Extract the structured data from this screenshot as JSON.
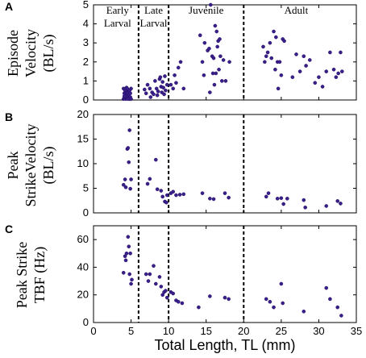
{
  "chart_data": [
    {
      "type": "scatter",
      "panel": "A",
      "ylabel_lines": [
        "Episode",
        "Velocity",
        "(BL/s)"
      ],
      "ylim": [
        0,
        5
      ],
      "yticks": [
        0,
        1,
        2,
        3,
        4,
        5
      ],
      "stage_labels": [
        {
          "lines": [
            "Early",
            "Larval"
          ],
          "x": 3.2
        },
        {
          "lines": [
            "Late",
            "Larval"
          ],
          "x": 8.0
        },
        {
          "lines": [
            "Juvenile"
          ],
          "x": 15.0
        },
        {
          "lines": [
            "Adult"
          ],
          "x": 27.0
        }
      ],
      "points": [
        [
          4.0,
          0.05
        ],
        [
          4.1,
          0.1
        ],
        [
          4.2,
          0.2
        ],
        [
          4.3,
          0.3
        ],
        [
          4.4,
          0.4
        ],
        [
          4.5,
          0.55
        ],
        [
          4.0,
          0.6
        ],
        [
          4.2,
          0.15
        ],
        [
          4.3,
          0.05
        ],
        [
          4.4,
          0.25
        ],
        [
          4.5,
          0.1
        ],
        [
          4.6,
          0.2
        ],
        [
          4.1,
          0.35
        ],
        [
          4.3,
          0.45
        ],
        [
          4.5,
          0.35
        ],
        [
          4.7,
          0.1
        ],
        [
          4.8,
          0.05
        ],
        [
          4.2,
          0.5
        ],
        [
          4.6,
          0.4
        ],
        [
          4.9,
          0.15
        ],
        [
          5.0,
          0.6
        ],
        [
          4.4,
          0.65
        ],
        [
          4.7,
          0.3
        ],
        [
          4.8,
          0.5
        ],
        [
          4.9,
          0.35
        ],
        [
          5.0,
          0.05
        ],
        [
          4.3,
          0.2
        ],
        [
          4.6,
          0.05
        ],
        [
          4.1,
          0.2
        ],
        [
          4.5,
          0.6
        ],
        [
          6.8,
          0.55
        ],
        [
          7.0,
          0.35
        ],
        [
          7.2,
          0.8
        ],
        [
          7.5,
          0.6
        ],
        [
          7.8,
          0.4
        ],
        [
          8.0,
          0.3
        ],
        [
          8.2,
          1.0
        ],
        [
          8.4,
          0.6
        ],
        [
          8.6,
          0.45
        ],
        [
          8.8,
          1.1
        ],
        [
          9.0,
          0.7
        ],
        [
          9.2,
          0.95
        ],
        [
          9.4,
          0.3
        ],
        [
          9.6,
          0.5
        ],
        [
          9.8,
          0.8
        ],
        [
          8.5,
          0.25
        ],
        [
          9.1,
          0.4
        ],
        [
          9.3,
          0.65
        ],
        [
          7.6,
          0.15
        ],
        [
          8.9,
          1.2
        ],
        [
          9.5,
          1.25
        ],
        [
          10.3,
          0.8
        ],
        [
          10.6,
          0.6
        ],
        [
          10.8,
          1.3
        ],
        [
          11.0,
          0.9
        ],
        [
          11.3,
          1.7
        ],
        [
          11.6,
          2.0
        ],
        [
          12.0,
          0.6
        ],
        [
          14.2,
          3.4
        ],
        [
          14.5,
          2.0
        ],
        [
          14.8,
          3.0
        ],
        [
          15.2,
          2.6
        ],
        [
          15.4,
          2.7
        ],
        [
          15.6,
          5.0
        ],
        [
          15.8,
          2.3
        ],
        [
          16.0,
          2.2
        ],
        [
          16.2,
          3.9
        ],
        [
          16.4,
          3.6
        ],
        [
          16.5,
          2.8
        ],
        [
          16.7,
          1.6
        ],
        [
          16.9,
          2.3
        ],
        [
          17.1,
          1.0
        ],
        [
          17.3,
          2.1
        ],
        [
          15.9,
          1.4
        ],
        [
          16.3,
          1.4
        ],
        [
          14.7,
          1.3
        ],
        [
          16.6,
          3.1
        ],
        [
          16.8,
          3.2
        ],
        [
          15.5,
          0.4
        ],
        [
          16.1,
          0.8
        ],
        [
          17.6,
          1.0
        ],
        [
          18.1,
          2.0
        ],
        [
          22.6,
          2.8
        ],
        [
          22.8,
          2.0
        ],
        [
          23.0,
          2.3
        ],
        [
          23.2,
          2.5
        ],
        [
          23.5,
          3.0
        ],
        [
          23.7,
          2.2
        ],
        [
          24.0,
          3.6
        ],
        [
          24.2,
          1.6
        ],
        [
          24.5,
          2.0
        ],
        [
          24.8,
          2.0
        ],
        [
          25.0,
          1.3
        ],
        [
          25.2,
          3.2
        ],
        [
          25.4,
          3.1
        ],
        [
          24.6,
          0.6
        ],
        [
          24.3,
          3.3
        ],
        [
          26.5,
          1.2
        ],
        [
          27.0,
          2.4
        ],
        [
          27.5,
          1.5
        ],
        [
          28.0,
          2.3
        ],
        [
          28.3,
          1.8
        ],
        [
          28.8,
          2.1
        ],
        [
          29.5,
          0.9
        ],
        [
          30.0,
          1.2
        ],
        [
          30.5,
          0.7
        ],
        [
          31.0,
          1.5
        ],
        [
          31.5,
          2.5
        ],
        [
          32.0,
          1.6
        ],
        [
          32.3,
          1.2
        ],
        [
          32.6,
          1.4
        ],
        [
          32.9,
          2.5
        ],
        [
          33.1,
          1.5
        ]
      ]
    },
    {
      "type": "scatter",
      "panel": "B",
      "ylabel_lines": [
        "Peak",
        "StrikeVelocity",
        "(BL/s)"
      ],
      "ylim": [
        0,
        20
      ],
      "yticks": [
        0,
        5,
        10,
        15,
        20
      ],
      "points": [
        [
          4.0,
          5.7
        ],
        [
          4.2,
          6.8
        ],
        [
          4.3,
          5.2
        ],
        [
          4.5,
          13.0
        ],
        [
          4.6,
          13.2
        ],
        [
          4.7,
          10.3
        ],
        [
          4.8,
          16.8
        ],
        [
          4.9,
          4.9
        ],
        [
          5.0,
          6.8
        ],
        [
          7.2,
          5.9
        ],
        [
          7.5,
          6.9
        ],
        [
          8.3,
          10.8
        ],
        [
          8.5,
          4.8
        ],
        [
          9.0,
          4.5
        ],
        [
          9.2,
          3.3
        ],
        [
          9.5,
          2.3
        ],
        [
          9.7,
          2.1
        ],
        [
          9.8,
          3.6
        ],
        [
          10.3,
          4.0
        ],
        [
          10.6,
          4.3
        ],
        [
          11.0,
          3.6
        ],
        [
          11.5,
          3.7
        ],
        [
          12.0,
          3.8
        ],
        [
          14.5,
          4.0
        ],
        [
          15.5,
          2.9
        ],
        [
          16.0,
          2.8
        ],
        [
          17.5,
          4.0
        ],
        [
          18.0,
          3.1
        ],
        [
          23.0,
          3.3
        ],
        [
          23.3,
          4.0
        ],
        [
          24.5,
          2.9
        ],
        [
          25.0,
          3.0
        ],
        [
          25.3,
          1.8
        ],
        [
          25.8,
          2.9
        ],
        [
          28.0,
          2.6
        ],
        [
          28.2,
          1.1
        ],
        [
          31.0,
          1.4
        ],
        [
          32.5,
          2.4
        ],
        [
          32.9,
          1.9
        ]
      ]
    },
    {
      "type": "scatter",
      "panel": "C",
      "ylabel_lines": [
        "Peak Strike",
        "TBF (Hz)"
      ],
      "ylim": [
        0,
        70
      ],
      "yticks": [
        0,
        20,
        40,
        60
      ],
      "points": [
        [
          4.0,
          36
        ],
        [
          4.2,
          48
        ],
        [
          4.3,
          45
        ],
        [
          4.4,
          50
        ],
        [
          4.6,
          62
        ],
        [
          4.7,
          55
        ],
        [
          4.8,
          35
        ],
        [
          4.9,
          50
        ],
        [
          5.0,
          28
        ],
        [
          5.1,
          31
        ],
        [
          7.0,
          35
        ],
        [
          7.3,
          30
        ],
        [
          7.5,
          35
        ],
        [
          8.0,
          41
        ],
        [
          8.3,
          28
        ],
        [
          8.8,
          33
        ],
        [
          9.0,
          26
        ],
        [
          9.2,
          20
        ],
        [
          9.4,
          22
        ],
        [
          9.6,
          23
        ],
        [
          9.8,
          18
        ],
        [
          10.3,
          22
        ],
        [
          10.6,
          21
        ],
        [
          11.0,
          16
        ],
        [
          11.3,
          15
        ],
        [
          11.8,
          14
        ],
        [
          14.0,
          11
        ],
        [
          15.5,
          19
        ],
        [
          17.5,
          18
        ],
        [
          18.0,
          17
        ],
        [
          23.0,
          17
        ],
        [
          23.5,
          15
        ],
        [
          24.0,
          11
        ],
        [
          25.0,
          28
        ],
        [
          25.2,
          14
        ],
        [
          28.0,
          8
        ],
        [
          31.0,
          25
        ],
        [
          31.5,
          17
        ],
        [
          32.5,
          11
        ],
        [
          33.0,
          5
        ]
      ]
    }
  ],
  "shared": {
    "xlabel": "Total Length, TL (mm)",
    "xlim": [
      0,
      35
    ],
    "xticks": [
      0,
      5,
      10,
      15,
      20,
      25,
      30,
      35
    ],
    "stage_boundaries": [
      6,
      10,
      20
    ],
    "point_color": "#3a1e8a"
  }
}
